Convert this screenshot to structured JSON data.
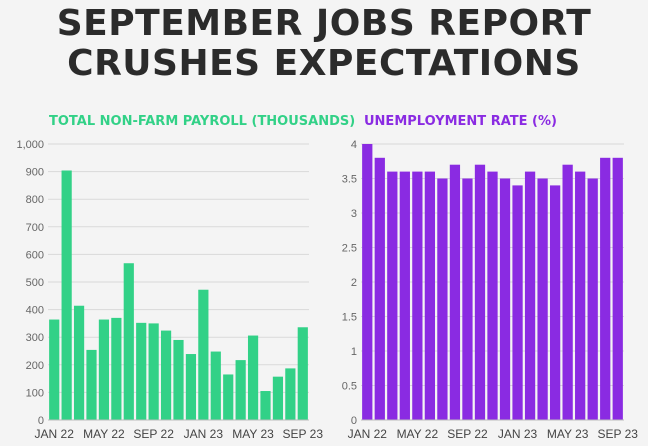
{
  "headline": {
    "line1": "SEPTEMBER JOBS REPORT",
    "line2": "CRUSHES EXPECTATIONS"
  },
  "colors": {
    "payroll": "#32d187",
    "unemployment": "#8a2be2",
    "headline": "#2b2b2b",
    "grid": "#d9d9d9",
    "background": "#f4f4f4"
  },
  "chart_data": [
    {
      "type": "bar",
      "title": "TOTAL NON-FARM PAYROLL (THOUSANDS)",
      "xlabel": "",
      "ylabel": "",
      "ylim": [
        0,
        1000
      ],
      "yticks": [
        "0",
        "100",
        "200",
        "300",
        "400",
        "500",
        "600",
        "700",
        "800",
        "900",
        "1,000"
      ],
      "xtick_labels": [
        "JAN 22",
        "MAY 22",
        "SEP 22",
        "JAN 23",
        "MAY 23",
        "SEP 23"
      ],
      "grid": true,
      "categories": [
        "Jan 22",
        "Feb 22",
        "Mar 22",
        "Apr 22",
        "May 22",
        "Jun 22",
        "Jul 22",
        "Aug 22",
        "Sep 22",
        "Oct 22",
        "Nov 22",
        "Dec 22",
        "Jan 23",
        "Feb 23",
        "Mar 23",
        "Apr 23",
        "May 23",
        "Jun 23",
        "Jul 23",
        "Aug 23",
        "Sep 23"
      ],
      "values": [
        364,
        904,
        414,
        254,
        364,
        370,
        568,
        352,
        350,
        324,
        290,
        239,
        472,
        248,
        165,
        217,
        306,
        105,
        157,
        187,
        336
      ]
    },
    {
      "type": "bar",
      "title": "UNEMPLOYMENT RATE (%)",
      "xlabel": "",
      "ylabel": "",
      "ylim": [
        0,
        4
      ],
      "yticks": [
        "0",
        "0.5",
        "1",
        "1.5",
        "2",
        "2.5",
        "3",
        "3.5",
        "4"
      ],
      "xtick_labels": [
        "JAN 22",
        "MAY 22",
        "SEP 22",
        "JAN 23",
        "MAY 23",
        "SEP 23"
      ],
      "grid": true,
      "categories": [
        "Jan 22",
        "Feb 22",
        "Mar 22",
        "Apr 22",
        "May 22",
        "Jun 22",
        "Jul 22",
        "Aug 22",
        "Sep 22",
        "Oct 22",
        "Nov 22",
        "Dec 22",
        "Jan 23",
        "Feb 23",
        "Mar 23",
        "Apr 23",
        "May 23",
        "Jun 23",
        "Jul 23",
        "Aug 23",
        "Sep 23"
      ],
      "values": [
        4.0,
        3.8,
        3.6,
        3.6,
        3.6,
        3.6,
        3.5,
        3.7,
        3.5,
        3.7,
        3.6,
        3.5,
        3.4,
        3.6,
        3.5,
        3.4,
        3.7,
        3.6,
        3.5,
        3.8,
        3.8
      ]
    }
  ]
}
